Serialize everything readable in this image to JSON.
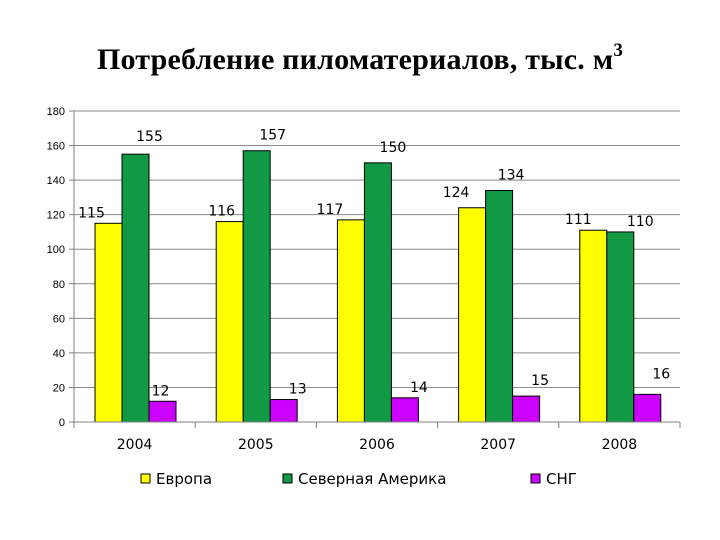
{
  "title": {
    "main": "Потребление пиломатериалов, тыс. м",
    "superscript": "3"
  },
  "chart_data": {
    "type": "bar",
    "categories": [
      "2004",
      "2005",
      "2006",
      "2007",
      "2008"
    ],
    "series": [
      {
        "name": "Европа",
        "color": "#ffff00",
        "values": [
          115,
          116,
          117,
          124,
          111
        ]
      },
      {
        "name": "Северная Америка",
        "color": "#119944",
        "values": [
          155,
          157,
          150,
          134,
          110
        ]
      },
      {
        "name": "СНГ",
        "color": "#cc00ff",
        "values": [
          12,
          13,
          14,
          15,
          16
        ]
      }
    ],
    "ylim": [
      0,
      180
    ],
    "yticks": [
      0,
      20,
      40,
      60,
      80,
      100,
      120,
      140,
      160,
      180
    ],
    "grid": true,
    "legend": "bottom"
  }
}
